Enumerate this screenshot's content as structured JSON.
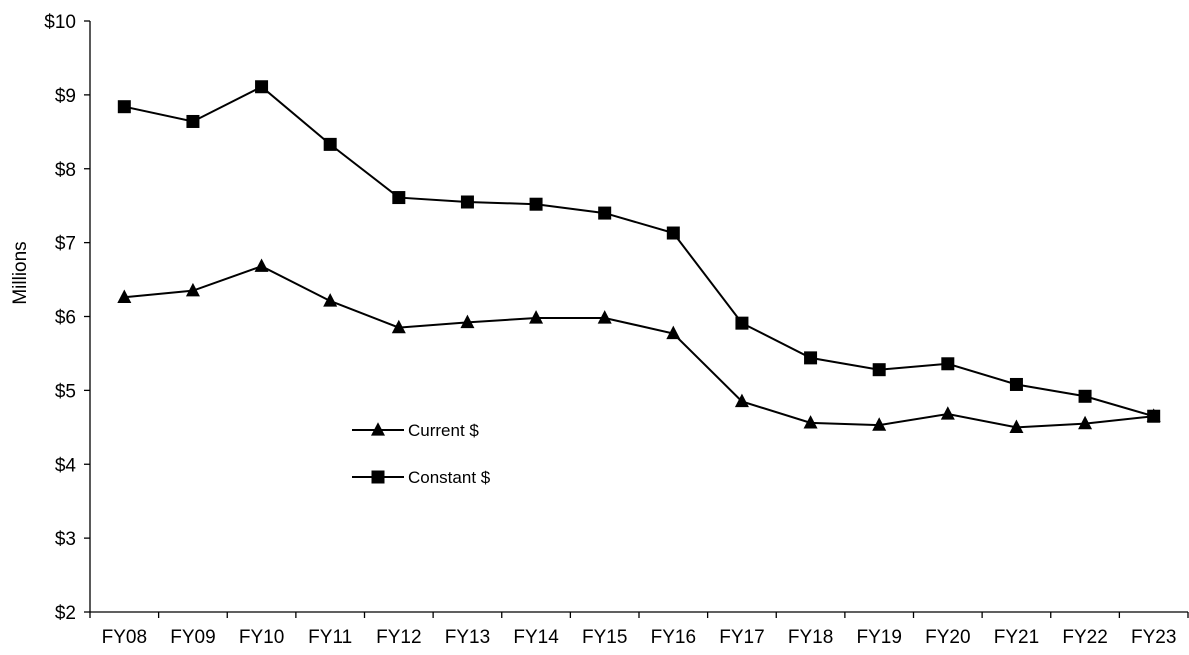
{
  "chart_data": {
    "type": "line",
    "title": "",
    "xlabel": "",
    "ylabel": "Millions",
    "categories": [
      "FY08",
      "FY09",
      "FY10",
      "FY11",
      "FY12",
      "FY13",
      "FY14",
      "FY15",
      "FY16",
      "FY17",
      "FY18",
      "FY19",
      "FY20",
      "FY21",
      "FY22",
      "FY23"
    ],
    "ylim": [
      2,
      10
    ],
    "yticks": [
      2,
      3,
      4,
      5,
      6,
      7,
      8,
      9,
      10
    ],
    "ytick_labels": [
      "$2",
      "$3",
      "$4",
      "$5",
      "$6",
      "$7",
      "$8",
      "$9",
      "$10"
    ],
    "grid": false,
    "legend_position": "center-left",
    "series": [
      {
        "name": "Current $",
        "marker": "triangle",
        "color": "#000000",
        "values": [
          6.26,
          6.35,
          6.68,
          6.21,
          5.85,
          5.92,
          5.98,
          5.98,
          5.77,
          4.85,
          4.56,
          4.53,
          4.68,
          4.5,
          4.55,
          4.65
        ]
      },
      {
        "name": "Constant $",
        "marker": "square",
        "color": "#000000",
        "values": [
          8.84,
          8.64,
          9.11,
          8.33,
          7.61,
          7.55,
          7.52,
          7.4,
          7.13,
          5.91,
          5.44,
          5.28,
          5.36,
          5.08,
          4.92,
          4.65
        ]
      }
    ]
  }
}
